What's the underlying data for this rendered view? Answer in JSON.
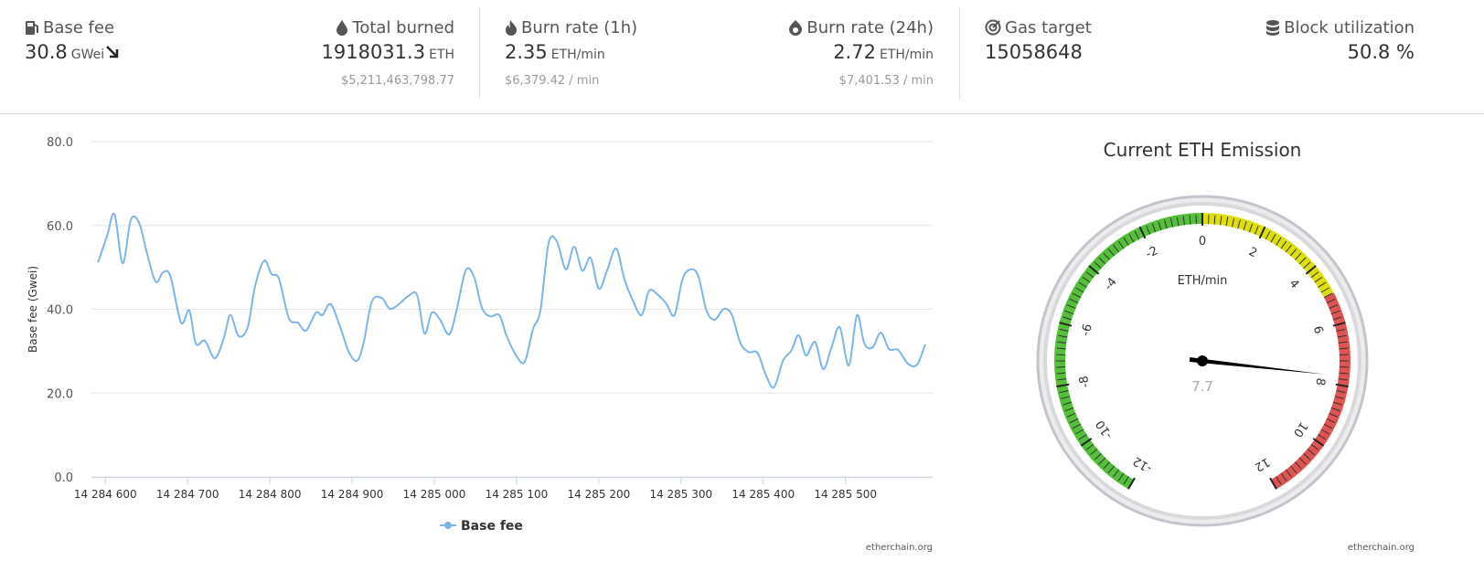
{
  "stats": [
    {
      "label": "Base fee",
      "value": "30.8",
      "unit": "GWei"
    },
    {
      "label": "Total burned",
      "value": "1918031.3",
      "unit": "ETH",
      "sub": "$5,211,463,798.77"
    },
    {
      "label": "Burn rate (1h)",
      "value": "2.35",
      "unit": "ETH/min",
      "sub": "$6,379.42 / min"
    },
    {
      "label": "Burn rate (24h)",
      "value": "2.72",
      "unit": "ETH/min",
      "sub": "$7,401.53 / min"
    },
    {
      "label": "Gas target",
      "value": "15058648"
    },
    {
      "label": "Block utilization",
      "value": "50.8 %"
    }
  ],
  "chart_data": [
    {
      "type": "line",
      "ylabel": "Base fee (Gwei)",
      "credit": "etherchain.org",
      "x": [
        14284591,
        14284602,
        14284611,
        14284621,
        14284631,
        14284641,
        14284650,
        14284661,
        14284670,
        14284679,
        14284692,
        14284702,
        14284710,
        14284721,
        14284733,
        14284744,
        14284752,
        14284762,
        14284773,
        14284782,
        14284793,
        14284802,
        14284811,
        14284823,
        14284834,
        14284844,
        14284856,
        14284864,
        14284874,
        14284887,
        14284896,
        14284906,
        14284914,
        14284924,
        14284936,
        14284946,
        14284958,
        14284968,
        14284979,
        14284988,
        14284997,
        14285007,
        14285018,
        14285027,
        14285038,
        14285048,
        14285058,
        14285068,
        14285079,
        14285088,
        14285100,
        14285110,
        14285120,
        14285129,
        14285139,
        14285149,
        14285160,
        14285170,
        14285180,
        14285190,
        14285200,
        14285210,
        14285221,
        14285231,
        14285241,
        14285252,
        14285261,
        14285271,
        14285282,
        14285292,
        14285302,
        14285312,
        14285321,
        14285331,
        14285341,
        14285352,
        14285362,
        14285372,
        14285382,
        14285393,
        14285403,
        14285413,
        14285424,
        14285434,
        14285443,
        14285452,
        14285463,
        14285473,
        14285483,
        14285493,
        14285504,
        14285514,
        14285523,
        14285533,
        14285543,
        14285553,
        14285564,
        14285576,
        14285587,
        14285597
      ],
      "series": [
        {
          "name": "Base fee",
          "color": "#7cb5ec",
          "values": [
            51.2,
            57.5,
            62.7,
            51,
            61.4,
            60.6,
            53.8,
            46.6,
            48.8,
            47.9,
            36.8,
            39.7,
            31.8,
            32.5,
            28.3,
            33.1,
            38.6,
            33.6,
            35.7,
            45.5,
            51.6,
            48.4,
            47.3,
            37.9,
            36.8,
            34.9,
            39.2,
            38.6,
            41.2,
            34.9,
            29.8,
            27.7,
            32,
            41.8,
            42.7,
            40.1,
            41.4,
            43.1,
            43.4,
            34.2,
            39.2,
            37.5,
            34,
            39.7,
            49.2,
            47.9,
            40.3,
            38.3,
            38.6,
            33.6,
            28.8,
            27.5,
            35.3,
            39.7,
            55.8,
            56.2,
            49.5,
            54.9,
            49.2,
            52.3,
            44.9,
            49.2,
            54.5,
            47.3,
            42.3,
            38.6,
            44.4,
            43.6,
            41.4,
            38.6,
            47.3,
            49.5,
            47.9,
            39.7,
            37.5,
            40.1,
            38.6,
            32,
            29.8,
            29.6,
            24.4,
            21.4,
            27.7,
            30.1,
            33.8,
            29,
            32.2,
            25.7,
            30.9,
            35.7,
            26.6,
            38.6,
            31.8,
            30.9,
            34.4,
            30.5,
            30.3,
            27,
            26.8,
            31.6
          ]
        }
      ],
      "xlim": [
        14284583,
        14285606
      ],
      "xticks": [
        {
          "value": 14284600,
          "label": "14 284 600"
        },
        {
          "value": 14284700,
          "label": "14 284 700"
        },
        {
          "value": 14284800,
          "label": "14 284 800"
        },
        {
          "value": 14284900,
          "label": "14 284 900"
        },
        {
          "value": 14285000,
          "label": "14 285 000"
        },
        {
          "value": 14285100,
          "label": "14 285 100"
        },
        {
          "value": 14285200,
          "label": "14 285 200"
        },
        {
          "value": 14285300,
          "label": "14 285 300"
        },
        {
          "value": 14285400,
          "label": "14 285 400"
        },
        {
          "value": 14285500,
          "label": "14 285 500"
        }
      ],
      "ylim": [
        0,
        80
      ],
      "yticks": [
        {
          "value": 0,
          "label": "0.0"
        },
        {
          "value": 20,
          "label": "20.0"
        },
        {
          "value": 40,
          "label": "40.0"
        },
        {
          "value": 60,
          "label": "60.0"
        },
        {
          "value": 80,
          "label": "80.0"
        }
      ],
      "grid": true
    },
    {
      "type": "gauge",
      "title": "Current ETH Emission",
      "unit": "ETH/min",
      "credit": "etherchain.org",
      "value": 7.7,
      "lim": [
        -12,
        12
      ],
      "ticks": [
        -12,
        -10,
        -8,
        -6,
        -4,
        -2,
        0,
        2,
        4,
        6,
        8,
        10,
        12
      ],
      "bands": [
        {
          "from": -12,
          "to": 0,
          "color": "#55bf3b"
        },
        {
          "from": 0,
          "to": 5,
          "color": "#dddf0d"
        },
        {
          "from": 5,
          "to": 12,
          "color": "#df5353"
        }
      ]
    }
  ]
}
